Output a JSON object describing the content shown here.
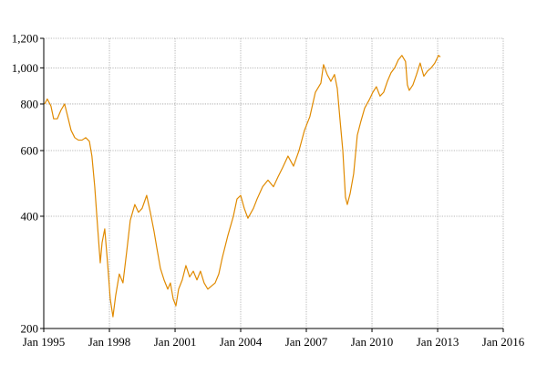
{
  "chart_data": {
    "type": "line",
    "title": "",
    "xlabel": "",
    "ylabel": "",
    "x_scale": "time",
    "y_scale": "log",
    "xlim": [
      "1995-01-01",
      "2016-01-01"
    ],
    "ylim": [
      200,
      1200
    ],
    "grid": true,
    "legend": "none",
    "x_ticks": [
      {
        "date": "1995-01-01",
        "label": "Jan 1995"
      },
      {
        "date": "1998-01-01",
        "label": "Jan 1998"
      },
      {
        "date": "2001-01-01",
        "label": "Jan 2001"
      },
      {
        "date": "2004-01-01",
        "label": "Jan 2004"
      },
      {
        "date": "2007-01-01",
        "label": "Jan 2007"
      },
      {
        "date": "2010-01-01",
        "label": "Jan 2010"
      },
      {
        "date": "2013-01-01",
        "label": "Jan 2013"
      },
      {
        "date": "2016-01-01",
        "label": "Jan 2016"
      }
    ],
    "y_ticks": [
      {
        "value": 200,
        "label": "200"
      },
      {
        "value": 400,
        "label": "400"
      },
      {
        "value": 600,
        "label": "600"
      },
      {
        "value": 800,
        "label": "800"
      },
      {
        "value": 1000,
        "label": "1,000"
      },
      {
        "value": 1200,
        "label": "1,200"
      }
    ],
    "series": [
      {
        "color": "#e08a00",
        "points": [
          [
            "1995-01-15",
            800
          ],
          [
            "1995-03-01",
            825
          ],
          [
            "1995-05-01",
            790
          ],
          [
            "1995-06-15",
            730
          ],
          [
            "1995-08-15",
            730
          ],
          [
            "1995-10-15",
            770
          ],
          [
            "1995-12-15",
            800
          ],
          [
            "1996-02-01",
            745
          ],
          [
            "1996-04-01",
            680
          ],
          [
            "1996-06-01",
            650
          ],
          [
            "1996-08-01",
            640
          ],
          [
            "1996-10-01",
            640
          ],
          [
            "1996-12-01",
            650
          ],
          [
            "1997-02-01",
            635
          ],
          [
            "1997-03-15",
            580
          ],
          [
            "1997-05-01",
            480
          ],
          [
            "1997-06-15",
            380
          ],
          [
            "1997-08-01",
            300
          ],
          [
            "1997-09-01",
            340
          ],
          [
            "1997-10-15",
            370
          ],
          [
            "1997-12-01",
            300
          ],
          [
            "1998-01-15",
            240
          ],
          [
            "1998-03-01",
            215
          ],
          [
            "1998-04-15",
            245
          ],
          [
            "1998-06-15",
            280
          ],
          [
            "1998-08-15",
            265
          ],
          [
            "1998-10-15",
            320
          ],
          [
            "1998-12-15",
            390
          ],
          [
            "1999-03-01",
            430
          ],
          [
            "1999-05-01",
            410
          ],
          [
            "1999-07-01",
            420
          ],
          [
            "1999-09-15",
            455
          ],
          [
            "1999-11-15",
            410
          ],
          [
            "2000-01-15",
            365
          ],
          [
            "2000-03-01",
            330
          ],
          [
            "2000-05-01",
            290
          ],
          [
            "2000-07-01",
            270
          ],
          [
            "2000-09-01",
            255
          ],
          [
            "2000-10-15",
            265
          ],
          [
            "2000-12-01",
            240
          ],
          [
            "2001-01-15",
            230
          ],
          [
            "2001-03-01",
            255
          ],
          [
            "2001-05-01",
            270
          ],
          [
            "2001-07-01",
            295
          ],
          [
            "2001-09-01",
            275
          ],
          [
            "2001-11-01",
            285
          ],
          [
            "2002-01-01",
            270
          ],
          [
            "2002-03-01",
            285
          ],
          [
            "2002-05-01",
            265
          ],
          [
            "2002-07-01",
            255
          ],
          [
            "2002-09-01",
            260
          ],
          [
            "2002-11-01",
            265
          ],
          [
            "2003-01-01",
            280
          ],
          [
            "2003-03-01",
            310
          ],
          [
            "2003-06-01",
            355
          ],
          [
            "2003-09-01",
            400
          ],
          [
            "2003-11-01",
            445
          ],
          [
            "2004-01-01",
            455
          ],
          [
            "2004-03-01",
            420
          ],
          [
            "2004-05-01",
            395
          ],
          [
            "2004-08-01",
            420
          ],
          [
            "2004-10-01",
            445
          ],
          [
            "2005-01-01",
            480
          ],
          [
            "2005-04-01",
            500
          ],
          [
            "2005-07-01",
            480
          ],
          [
            "2005-09-15",
            510
          ],
          [
            "2005-12-01",
            540
          ],
          [
            "2006-03-01",
            580
          ],
          [
            "2006-06-01",
            545
          ],
          [
            "2006-09-01",
            600
          ],
          [
            "2006-12-01",
            680
          ],
          [
            "2007-03-01",
            740
          ],
          [
            "2007-06-01",
            860
          ],
          [
            "2007-09-01",
            910
          ],
          [
            "2007-10-15",
            1020
          ],
          [
            "2007-12-15",
            960
          ],
          [
            "2008-02-15",
            920
          ],
          [
            "2008-04-15",
            960
          ],
          [
            "2008-06-01",
            880
          ],
          [
            "2008-07-15",
            730
          ],
          [
            "2008-09-01",
            600
          ],
          [
            "2008-10-15",
            450
          ],
          [
            "2008-11-15",
            430
          ],
          [
            "2009-01-01",
            460
          ],
          [
            "2009-03-01",
            520
          ],
          [
            "2009-05-01",
            660
          ],
          [
            "2009-07-01",
            720
          ],
          [
            "2009-09-01",
            780
          ],
          [
            "2009-11-15",
            820
          ],
          [
            "2010-01-15",
            860
          ],
          [
            "2010-03-15",
            890
          ],
          [
            "2010-05-15",
            840
          ],
          [
            "2010-07-15",
            860
          ],
          [
            "2010-09-15",
            920
          ],
          [
            "2010-11-15",
            970
          ],
          [
            "2011-01-15",
            1000
          ],
          [
            "2011-03-15",
            1050
          ],
          [
            "2011-05-15",
            1080
          ],
          [
            "2011-07-15",
            1040
          ],
          [
            "2011-08-15",
            900
          ],
          [
            "2011-09-15",
            870
          ],
          [
            "2011-11-15",
            900
          ],
          [
            "2012-01-15",
            960
          ],
          [
            "2012-03-15",
            1030
          ],
          [
            "2012-05-15",
            950
          ],
          [
            "2012-07-15",
            980
          ],
          [
            "2012-09-15",
            1000
          ],
          [
            "2012-11-15",
            1030
          ],
          [
            "2013-01-15",
            1080
          ],
          [
            "2013-02-15",
            1070
          ]
        ]
      }
    ]
  }
}
